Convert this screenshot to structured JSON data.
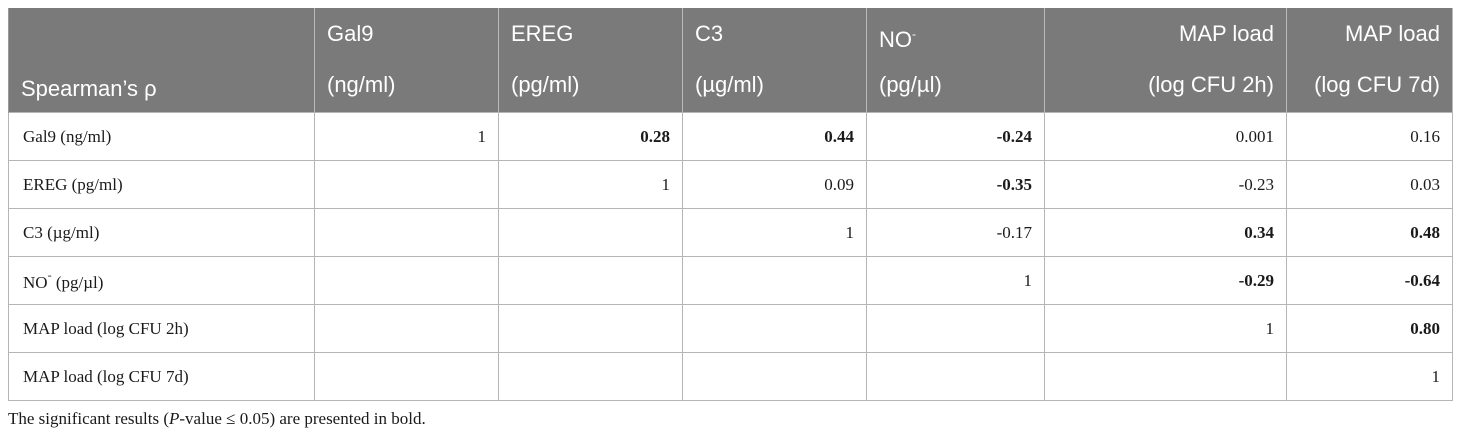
{
  "table": {
    "corner_label": "Spearman’s ρ",
    "columns": [
      {
        "line1": "Gal9",
        "line2": "(ng/ml)"
      },
      {
        "line1": "EREG",
        "line2": "(pg/ml)"
      },
      {
        "line1": "C3",
        "line2": "(µg/ml)"
      },
      {
        "line1": "NO",
        "line1_sup": "-",
        "line2": "(pg/µl)"
      },
      {
        "line1": "MAP load",
        "line2": "(log CFU 2h)"
      },
      {
        "line1": "MAP load",
        "line2": "(log CFU 7d)"
      }
    ],
    "rows": [
      {
        "label": "Gal9 (ng/ml)",
        "cells": [
          {
            "v": "1",
            "bold": false
          },
          {
            "v": "0.28",
            "bold": true
          },
          {
            "v": "0.44",
            "bold": true
          },
          {
            "v": "-0.24",
            "bold": true
          },
          {
            "v": "0.001",
            "bold": false
          },
          {
            "v": "0.16",
            "bold": false
          }
        ]
      },
      {
        "label": "EREG (pg/ml)",
        "cells": [
          {
            "v": "",
            "bold": false
          },
          {
            "v": "1",
            "bold": false
          },
          {
            "v": "0.09",
            "bold": false
          },
          {
            "v": "-0.35",
            "bold": true
          },
          {
            "v": "-0.23",
            "bold": false
          },
          {
            "v": "0.03",
            "bold": false
          }
        ]
      },
      {
        "label": "C3 (µg/ml)",
        "cells": [
          {
            "v": "",
            "bold": false
          },
          {
            "v": "",
            "bold": false
          },
          {
            "v": "1",
            "bold": false
          },
          {
            "v": "-0.17",
            "bold": false
          },
          {
            "v": "0.34",
            "bold": true
          },
          {
            "v": "0.48",
            "bold": true
          }
        ]
      },
      {
        "label": "NO",
        "label_sup": "-",
        "label_rest": " (pg/µl)",
        "cells": [
          {
            "v": "",
            "bold": false
          },
          {
            "v": "",
            "bold": false
          },
          {
            "v": "",
            "bold": false
          },
          {
            "v": "1",
            "bold": false
          },
          {
            "v": "-0.29",
            "bold": true
          },
          {
            "v": "-0.64",
            "bold": true
          }
        ]
      },
      {
        "label": "MAP load (log CFU 2h)",
        "cells": [
          {
            "v": "",
            "bold": false
          },
          {
            "v": "",
            "bold": false
          },
          {
            "v": "",
            "bold": false
          },
          {
            "v": "",
            "bold": false
          },
          {
            "v": "1",
            "bold": false
          },
          {
            "v": "0.80",
            "bold": true
          }
        ]
      },
      {
        "label": "MAP load (log CFU 7d)",
        "cells": [
          {
            "v": "",
            "bold": false
          },
          {
            "v": "",
            "bold": false
          },
          {
            "v": "",
            "bold": false
          },
          {
            "v": "",
            "bold": false
          },
          {
            "v": "",
            "bold": false
          },
          {
            "v": "1",
            "bold": false
          }
        ]
      }
    ]
  },
  "footnote": {
    "prefix": "The significant results (",
    "italic": "P",
    "suffix": "-value ≤ 0.05) are presented in bold."
  }
}
